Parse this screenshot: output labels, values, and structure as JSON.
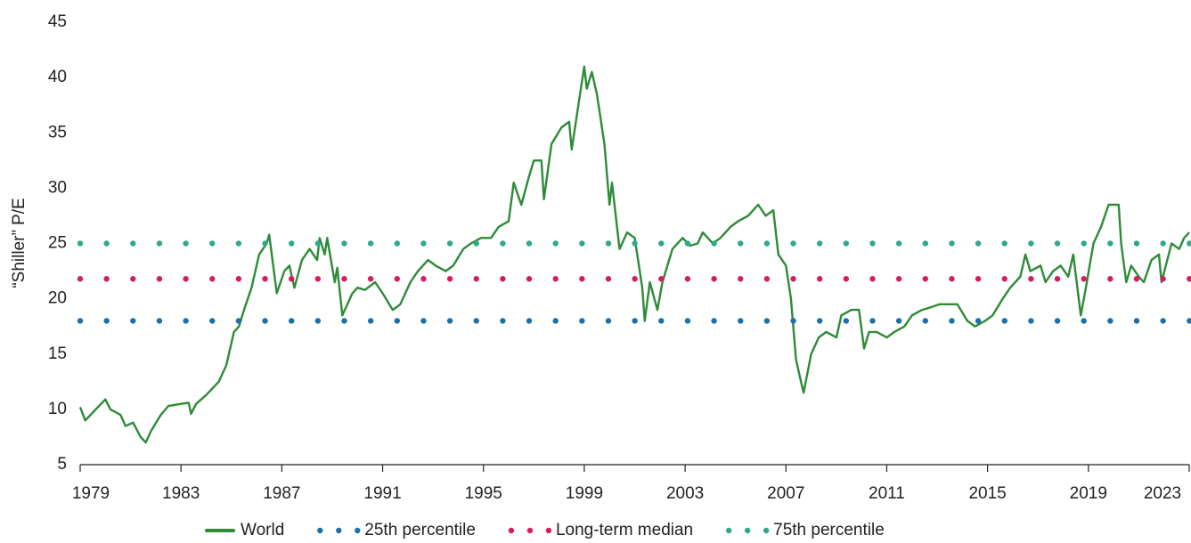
{
  "chart_data": {
    "type": "line",
    "y_label": "“Shiller” P/E",
    "xlim": [
      1979,
      2023
    ],
    "xticks": [
      1979,
      1983,
      1987,
      1991,
      1995,
      1999,
      2003,
      2007,
      2011,
      2015,
      2019,
      2023
    ],
    "ylim": [
      5,
      45
    ],
    "yticks": [
      5,
      10,
      15,
      20,
      25,
      30,
      35,
      40,
      45
    ],
    "grid": false,
    "legend": "bottom",
    "x": [
      1979.0,
      1979.2,
      1979.7,
      1980.0,
      1980.2,
      1980.6,
      1980.8,
      1981.1,
      1981.4,
      1981.6,
      1981.8,
      1982.2,
      1982.5,
      1983.0,
      1983.3,
      1983.4,
      1983.6,
      1984.0,
      1984.5,
      1984.8,
      1985.1,
      1985.3,
      1985.5,
      1985.8,
      1986.1,
      1986.4,
      1986.5,
      1986.8,
      1987.1,
      1987.3,
      1987.5,
      1987.8,
      1988.1,
      1988.4,
      1988.5,
      1988.7,
      1988.8,
      1989.1,
      1989.2,
      1989.4,
      1989.8,
      1990.0,
      1990.3,
      1990.7,
      1991.0,
      1991.4,
      1991.7,
      1992.1,
      1992.4,
      1992.8,
      1993.1,
      1993.5,
      1993.8,
      1994.2,
      1994.5,
      1994.9,
      1995.3,
      1995.6,
      1996.0,
      1996.2,
      1996.5,
      1996.8,
      1997.0,
      1997.3,
      1997.4,
      1997.7,
      1998.1,
      1998.4,
      1998.5,
      1998.8,
      1999.0,
      1999.1,
      1999.3,
      1999.5,
      1999.6,
      1999.8,
      2000.0,
      2000.1,
      2000.4,
      2000.7,
      2001.0,
      2001.3,
      2001.4,
      2001.6,
      2001.9,
      2002.1,
      2002.5,
      2002.9,
      2003.2,
      2003.5,
      2003.7,
      2004.1,
      2004.4,
      2004.8,
      2005.1,
      2005.5,
      2005.9,
      2006.2,
      2006.5,
      2006.7,
      2007.0,
      2007.2,
      2007.4,
      2007.6,
      2007.7,
      2008.0,
      2008.3,
      2008.6,
      2009.0,
      2009.2,
      2009.6,
      2009.9,
      2010.1,
      2010.3,
      2010.6,
      2011.0,
      2011.3,
      2011.7,
      2012.0,
      2012.4,
      2012.7,
      2013.1,
      2013.5,
      2013.8,
      2014.2,
      2014.5,
      2014.9,
      2015.2,
      2015.6,
      2015.9,
      2016.3,
      2016.5,
      2016.7,
      2017.1,
      2017.3,
      2017.6,
      2017.9,
      2018.2,
      2018.4,
      2018.7,
      2018.9,
      2019.2,
      2019.5,
      2019.8,
      2020.2,
      2020.3,
      2020.5,
      2020.7,
      2021.0,
      2021.2,
      2021.5,
      2021.8,
      2021.9,
      2022.3,
      2022.6,
      2022.8,
      2023.0
    ],
    "series": [
      {
        "name": "World",
        "color": "#2e8b37",
        "style": "solid",
        "values": [
          10.2,
          9.0,
          10.2,
          10.9,
          10.0,
          9.5,
          8.5,
          8.8,
          7.5,
          7.0,
          8.0,
          9.5,
          10.3,
          10.5,
          10.6,
          9.6,
          10.5,
          11.3,
          12.5,
          14.0,
          17.0,
          17.5,
          19.0,
          21.0,
          24.0,
          25.0,
          25.8,
          20.5,
          22.5,
          23.0,
          21.0,
          23.5,
          24.5,
          23.5,
          25.5,
          24.0,
          25.5,
          21.5,
          22.8,
          18.5,
          20.5,
          21.0,
          20.8,
          21.5,
          20.5,
          19.0,
          19.5,
          21.5,
          22.5,
          23.5,
          23.0,
          22.5,
          23.0,
          24.5,
          25.0,
          25.5,
          25.5,
          26.5,
          27.0,
          30.5,
          28.5,
          31.0,
          32.5,
          32.5,
          29.0,
          34.0,
          35.5,
          36.0,
          33.5,
          38.0,
          41.0,
          39.0,
          40.5,
          38.5,
          37.0,
          34.0,
          28.5,
          30.5,
          24.5,
          26.0,
          25.5,
          21.0,
          18.0,
          21.5,
          19.0,
          21.5,
          24.5,
          25.5,
          24.8,
          25.0,
          26.0,
          25.0,
          25.5,
          26.5,
          27.0,
          27.5,
          28.5,
          27.5,
          28.0,
          24.0,
          23.0,
          20.0,
          14.5,
          12.5,
          11.5,
          15.0,
          16.5,
          17.0,
          16.5,
          18.5,
          19.0,
          19.0,
          15.5,
          17.0,
          17.0,
          16.5,
          17.0,
          17.5,
          18.5,
          19.0,
          19.2,
          19.5,
          19.5,
          19.5,
          18.0,
          17.5,
          18.0,
          18.5,
          20.0,
          21.0,
          22.0,
          24.0,
          22.5,
          23.0,
          21.5,
          22.5,
          23.0,
          22.0,
          24.0,
          18.5,
          21.0,
          25.0,
          26.5,
          28.5,
          28.5,
          25.0,
          21.5,
          23.0,
          22.0,
          21.5,
          23.5,
          24.0,
          21.5,
          25.0,
          24.5,
          25.5,
          26.0
        ]
      },
      {
        "name": "25th percentile",
        "color": "#1c6fa8",
        "style": "dotted",
        "value": 18
      },
      {
        "name": "Long-term median",
        "color": "#d81b60",
        "style": "dotted",
        "value": 21.8
      },
      {
        "name": "75th percentile",
        "color": "#2ea98a",
        "style": "dotted",
        "value": 25
      }
    ]
  }
}
